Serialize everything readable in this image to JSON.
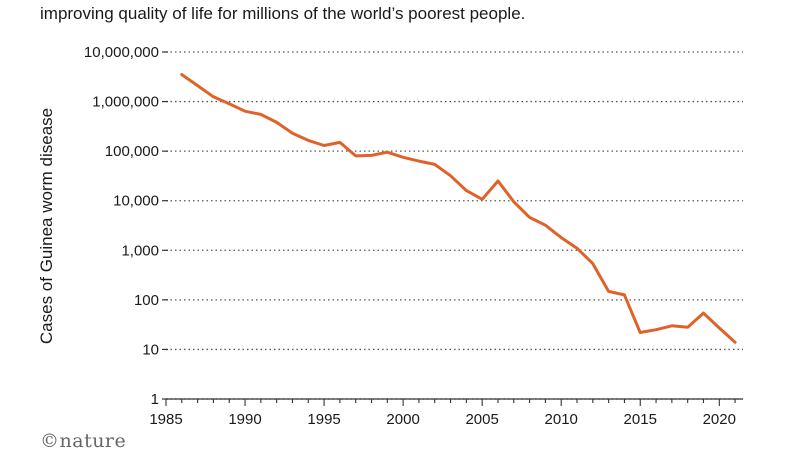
{
  "caption": "improving quality of life for millions of the world’s poorest people.",
  "logo_text": "©nature",
  "chart_data": {
    "type": "line",
    "title": "",
    "xlabel": "",
    "ylabel": "Cases of Guinea worm disease",
    "y_scale": "log",
    "xlim": [
      1985,
      2021.5
    ],
    "ylim": [
      1,
      10000000
    ],
    "grid": "horizontal dotted",
    "line_color": "#e0622b",
    "x_ticks": [
      1985,
      1990,
      1995,
      2000,
      2005,
      2010,
      2015,
      2020
    ],
    "y_ticks": [
      {
        "value": 1,
        "label": "1"
      },
      {
        "value": 10,
        "label": "10"
      },
      {
        "value": 100,
        "label": "100"
      },
      {
        "value": 1000,
        "label": "1,000"
      },
      {
        "value": 10000,
        "label": "10,000"
      },
      {
        "value": 100000,
        "label": "100,000"
      },
      {
        "value": 1000000,
        "label": "1,000,000"
      },
      {
        "value": 10000000,
        "label": "10,000,000"
      }
    ],
    "series": [
      {
        "x": [
          1986,
          1987,
          1988,
          1989,
          1990,
          1991,
          1992,
          1993,
          1994,
          1995,
          1996,
          1997,
          1998,
          1999,
          2000,
          2001,
          2002,
          2003,
          2004,
          2005,
          2006,
          2007,
          2008,
          2009,
          2010,
          2011,
          2012,
          2013,
          2014,
          2015,
          2016,
          2017,
          2018,
          2019,
          2020,
          2021
        ],
        "y": [
          3500000,
          2100000,
          1250000,
          900000,
          640000,
          550000,
          380000,
          230000,
          165000,
          130000,
          150000,
          80000,
          82000,
          95000,
          75000,
          63000,
          54000,
          32000,
          16000,
          10700,
          25000,
          9500,
          4600,
          3200,
          1800,
          1100,
          540,
          148,
          126,
          22,
          25,
          30,
          28,
          54,
          27,
          14
        ]
      }
    ]
  }
}
